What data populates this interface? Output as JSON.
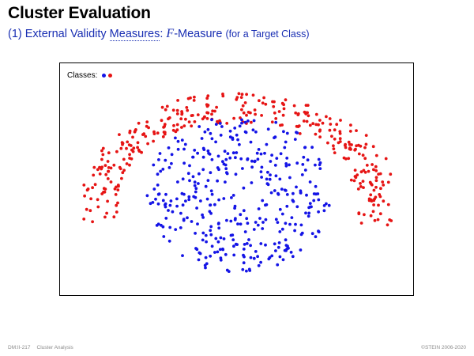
{
  "slide": {
    "title": "Cluster Evaluation",
    "subtitle_prefix": "(1) External Validity ",
    "subtitle_link": "Measures",
    "subtitle_sep": ": ",
    "subtitle_math": "F",
    "subtitle_after": "-Measure ",
    "subtitle_small": "(for a Target Class)"
  },
  "plot": {
    "legend_label": "Classes:",
    "class_colors": {
      "blue": "#1414e6",
      "red": "#e61414"
    }
  },
  "footer": {
    "slide_number": "DM:II-217",
    "section": "Cluster Analysis",
    "copyright": "©STEIN 2006-2020"
  },
  "colors": {
    "title": "#000000",
    "subtitle": "#1a2fb3",
    "footer": "#8c8c8c"
  }
}
